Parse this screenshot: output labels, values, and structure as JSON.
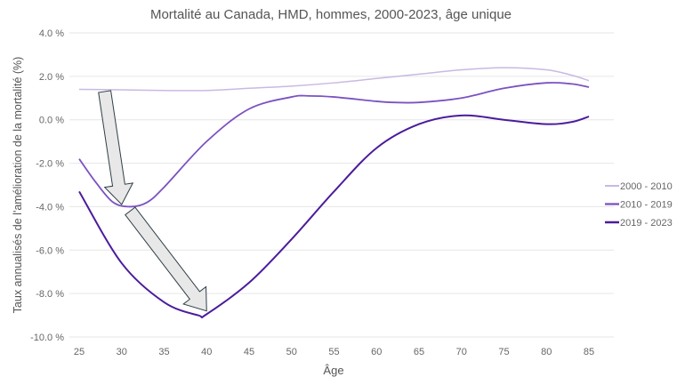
{
  "chart_data": {
    "type": "line",
    "title": "Mortalité au Canada, HMD, hommes, 2000-2023, âge unique",
    "xlabel": "Âge",
    "ylabel": "Taux annualisés de l'amélioration de la mortalité (%)",
    "xlim": [
      25,
      85
    ],
    "ylim": [
      -10,
      4
    ],
    "x_ticks": [
      "25",
      "30",
      "35",
      "40",
      "45",
      "50",
      "55",
      "60",
      "65",
      "70",
      "75",
      "80",
      "85"
    ],
    "y_ticks": [
      "4.0 %",
      "2.0 %",
      "0.0 %",
      "-2.0 %",
      "-4.0 %",
      "-6.0 %",
      "-8.0 %",
      "-10.0 %"
    ],
    "y_tick_values": [
      4,
      2,
      0,
      -2,
      -4,
      -6,
      -8,
      -10
    ],
    "grid": "horizontal",
    "legend_position": "right",
    "series": [
      {
        "name": "2000 - 2010",
        "color": "#c9b9e3",
        "x": [
          25,
          30,
          35,
          40,
          45,
          50,
          55,
          60,
          65,
          70,
          75,
          80,
          83,
          85
        ],
        "y": [
          1.4,
          1.38,
          1.35,
          1.35,
          1.45,
          1.55,
          1.7,
          1.9,
          2.1,
          2.3,
          2.4,
          2.3,
          2.05,
          1.8
        ]
      },
      {
        "name": "2010 - 2019",
        "color": "#7b52c0",
        "x": [
          25,
          27,
          29,
          31,
          33,
          35,
          40,
          45,
          50,
          52,
          55,
          60,
          62,
          65,
          70,
          75,
          80,
          83,
          85
        ],
        "y": [
          -1.8,
          -2.9,
          -3.8,
          -4.0,
          -3.8,
          -3.1,
          -1.0,
          0.5,
          1.05,
          1.1,
          1.05,
          0.85,
          0.8,
          0.8,
          1.0,
          1.45,
          1.7,
          1.65,
          1.5
        ]
      },
      {
        "name": "2019 - 2023",
        "color": "#4b1c9c",
        "x": [
          25,
          30,
          35,
          39,
          40,
          45,
          50,
          55,
          60,
          65,
          70,
          75,
          80,
          83,
          85
        ],
        "y": [
          -3.3,
          -6.6,
          -8.4,
          -9.0,
          -8.95,
          -7.5,
          -5.5,
          -3.3,
          -1.3,
          -0.2,
          0.2,
          0.0,
          -0.2,
          -0.1,
          0.15
        ]
      }
    ],
    "annotations": [
      {
        "type": "arrow",
        "from": [
          28,
          1.3
        ],
        "to": [
          30,
          -3.9
        ]
      },
      {
        "type": "arrow",
        "from": [
          31,
          -4.2
        ],
        "to": [
          40,
          -8.8
        ]
      }
    ]
  }
}
